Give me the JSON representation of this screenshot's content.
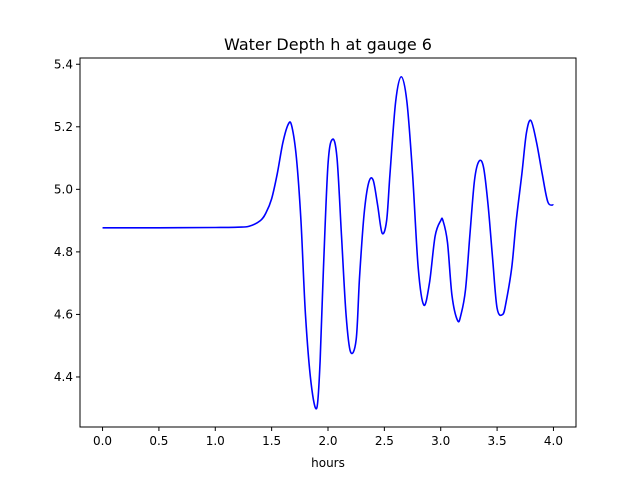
{
  "chart_data": {
    "type": "line",
    "title": "Water Depth h at gauge 6",
    "xlabel": "hours",
    "ylabel": "",
    "xlim": [
      -0.2,
      4.2
    ],
    "ylim": [
      4.24,
      5.42
    ],
    "xticks": [
      0.0,
      0.5,
      1.0,
      1.5,
      2.0,
      2.5,
      3.0,
      3.5,
      4.0
    ],
    "xtick_labels": [
      "0.0",
      "0.5",
      "1.0",
      "1.5",
      "2.0",
      "2.5",
      "3.0",
      "3.5",
      "4.0"
    ],
    "yticks": [
      4.4,
      4.6,
      4.8,
      5.0,
      5.2,
      5.4
    ],
    "ytick_labels": [
      "4.4",
      "4.6",
      "4.8",
      "5.0",
      "5.2",
      "5.4"
    ],
    "grid": false,
    "series": [
      {
        "color": "#0000ff",
        "x": [
          0.0,
          0.5,
          1.0,
          1.2,
          1.3,
          1.4,
          1.45,
          1.5,
          1.55,
          1.6,
          1.65,
          1.68,
          1.72,
          1.76,
          1.8,
          1.85,
          1.9,
          1.93,
          1.96,
          2.0,
          2.04,
          2.08,
          2.12,
          2.16,
          2.2,
          2.25,
          2.28,
          2.32,
          2.36,
          2.4,
          2.44,
          2.48,
          2.52,
          2.55,
          2.6,
          2.65,
          2.7,
          2.75,
          2.8,
          2.85,
          2.9,
          2.95,
          3.0,
          3.02,
          3.06,
          3.1,
          3.15,
          3.18,
          3.22,
          3.26,
          3.3,
          3.34,
          3.38,
          3.42,
          3.46,
          3.5,
          3.55,
          3.58,
          3.63,
          3.67,
          3.72,
          3.76,
          3.8,
          3.85,
          3.9,
          3.95,
          4.0
        ],
        "y": [
          4.877,
          4.877,
          4.878,
          4.879,
          4.882,
          4.9,
          4.925,
          4.97,
          5.05,
          5.15,
          5.21,
          5.2,
          5.1,
          4.9,
          4.6,
          4.38,
          4.3,
          4.45,
          4.75,
          5.08,
          5.16,
          5.1,
          4.85,
          4.6,
          4.48,
          4.52,
          4.72,
          4.92,
          5.02,
          5.03,
          4.95,
          4.86,
          4.9,
          5.05,
          5.28,
          5.36,
          5.28,
          5.05,
          4.75,
          4.63,
          4.7,
          4.85,
          4.9,
          4.9,
          4.83,
          4.66,
          4.58,
          4.6,
          4.68,
          4.86,
          5.03,
          5.09,
          5.07,
          4.95,
          4.78,
          4.62,
          4.6,
          4.64,
          4.75,
          4.9,
          5.05,
          5.18,
          5.22,
          5.15,
          5.05,
          4.96,
          4.95
        ]
      }
    ]
  }
}
